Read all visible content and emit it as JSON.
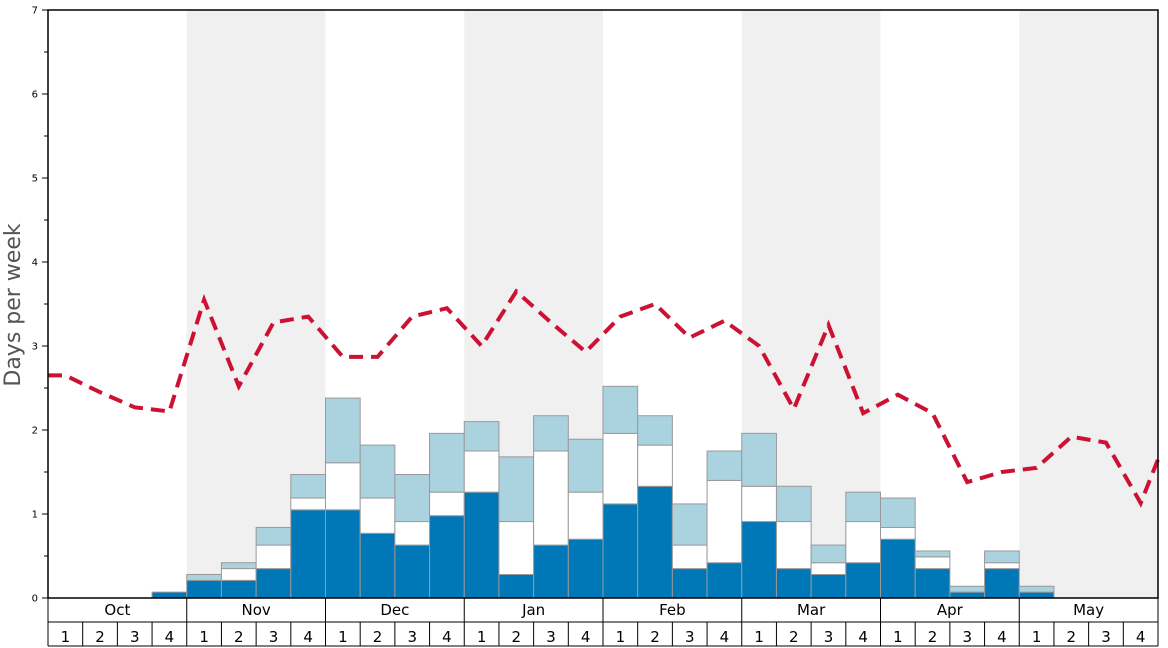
{
  "chart_data": {
    "type": "bar",
    "title": "",
    "xlabel": "",
    "ylabel": "Days per week",
    "ylim": [
      0,
      7
    ],
    "y_ticks": [
      0,
      1,
      2,
      3,
      4,
      5,
      6,
      7
    ],
    "months": [
      "Oct",
      "Nov",
      "Dec",
      "Jan",
      "Feb",
      "Mar",
      "Apr",
      "May"
    ],
    "week_labels": [
      "1",
      "2",
      "3",
      "4"
    ],
    "series": [
      {
        "name": "dark",
        "color": "#0077b6",
        "values": [
          0,
          0,
          0,
          0.07,
          0.21,
          0.21,
          0.35,
          1.05,
          1.05,
          0.77,
          0.63,
          0.98,
          1.26,
          0.28,
          0.63,
          0.7,
          1.12,
          1.33,
          0.35,
          0.42,
          0.91,
          0.35,
          0.28,
          0.42,
          0.7,
          0.35,
          0.07,
          0.35,
          0.07,
          0,
          0,
          0
        ]
      },
      {
        "name": "white",
        "color": "#ffffff",
        "values": [
          0,
          0,
          0,
          0,
          0,
          0.14,
          0.28,
          0.14,
          0.56,
          0.42,
          0.28,
          0.28,
          0.49,
          0.63,
          1.12,
          0.56,
          0.84,
          0.49,
          0.28,
          0.98,
          0.42,
          0.56,
          0.14,
          0.49,
          0.14,
          0.14,
          0,
          0.07,
          0,
          0,
          0,
          0
        ]
      },
      {
        "name": "light",
        "color": "#abd3df",
        "values": [
          0,
          0,
          0,
          0,
          0.07,
          0.07,
          0.21,
          0.28,
          0.77,
          0.63,
          0.56,
          0.7,
          0.35,
          0.77,
          0.42,
          0.63,
          0.56,
          0.35,
          0.49,
          0.35,
          0.63,
          0.42,
          0.21,
          0.35,
          0.35,
          0.07,
          0.07,
          0.14,
          0.07,
          0,
          0,
          0
        ]
      },
      {
        "name": "average",
        "color": "#cc1133",
        "style": "dashed-line",
        "values": [
          2.65,
          2.45,
          2.27,
          2.22,
          3.55,
          2.52,
          3.28,
          3.35,
          2.87,
          2.87,
          3.35,
          3.45,
          3.0,
          3.65,
          3.28,
          2.93,
          3.35,
          3.5,
          3.1,
          3.3,
          3.0,
          2.25,
          3.25,
          2.2,
          2.42,
          2.2,
          1.38,
          1.5,
          1.55,
          1.92,
          1.85,
          1.13
        ]
      }
    ],
    "average_line_end": 1.65
  }
}
